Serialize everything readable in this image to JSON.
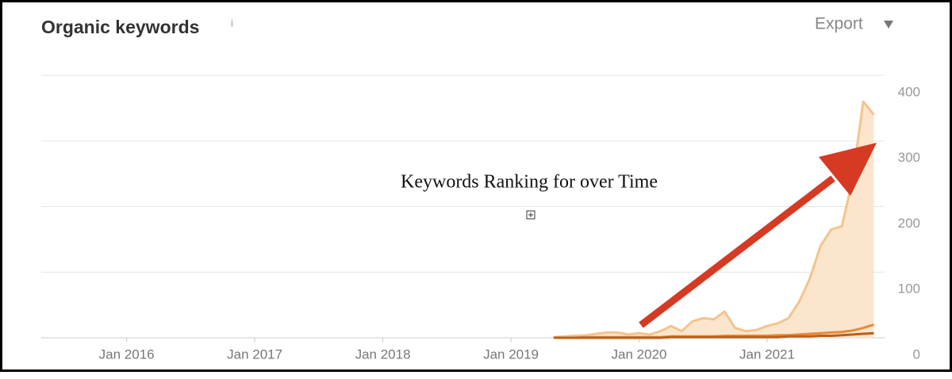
{
  "chart_data": {
    "type": "area",
    "title": "Organic keywords",
    "info_icon": "i",
    "export_label": "Export",
    "annotation": "Keywords Ranking for over Time",
    "x": [
      "2019-05",
      "2019-06",
      "2019-07",
      "2019-08",
      "2019-09",
      "2019-10",
      "2019-11",
      "2019-12",
      "2020-01",
      "2020-02",
      "2020-03",
      "2020-04",
      "2020-05",
      "2020-06",
      "2020-07",
      "2020-08",
      "2020-09",
      "2020-10",
      "2020-11",
      "2020-12",
      "2021-01",
      "2021-02",
      "2021-03",
      "2021-04",
      "2021-05",
      "2021-06",
      "2021-07",
      "2021-08",
      "2021-09",
      "2021-10",
      "2021-11"
    ],
    "series": [
      {
        "color": "#f3c48d",
        "fill": "#fbe6cd",
        "values": [
          1,
          2,
          3,
          4,
          6,
          8,
          8,
          5,
          7,
          5,
          10,
          18,
          10,
          25,
          30,
          28,
          40,
          15,
          10,
          12,
          18,
          22,
          30,
          55,
          90,
          140,
          165,
          170,
          240,
          360,
          340
        ]
      },
      {
        "color": "#e8893a",
        "values": [
          0,
          0,
          0,
          1,
          1,
          1,
          1,
          1,
          1,
          1,
          1,
          2,
          2,
          2,
          2,
          2,
          3,
          3,
          3,
          3,
          3,
          4,
          4,
          5,
          6,
          7,
          8,
          9,
          11,
          15,
          20
        ]
      },
      {
        "color": "#b8601c",
        "values": [
          0,
          0,
          0,
          0,
          0,
          0,
          0,
          0,
          0,
          0,
          0,
          1,
          1,
          1,
          1,
          1,
          1,
          1,
          1,
          1,
          1,
          1,
          2,
          2,
          2,
          3,
          3,
          4,
          5,
          6,
          7
        ]
      }
    ],
    "xlim": [
      "2015-05",
      "2021-12"
    ],
    "xticks": [
      {
        "value": "2016-01",
        "label": "Jan 2016"
      },
      {
        "value": "2017-01",
        "label": "Jan 2017"
      },
      {
        "value": "2018-01",
        "label": "Jan 2018"
      },
      {
        "value": "2019-01",
        "label": "Jan 2019"
      },
      {
        "value": "2020-01",
        "label": "Jan 2020"
      },
      {
        "value": "2021-01",
        "label": "Jan 2021"
      }
    ],
    "ylim": [
      0,
      400
    ],
    "yticks": [
      0,
      100,
      200,
      300,
      400
    ],
    "grid": true
  }
}
